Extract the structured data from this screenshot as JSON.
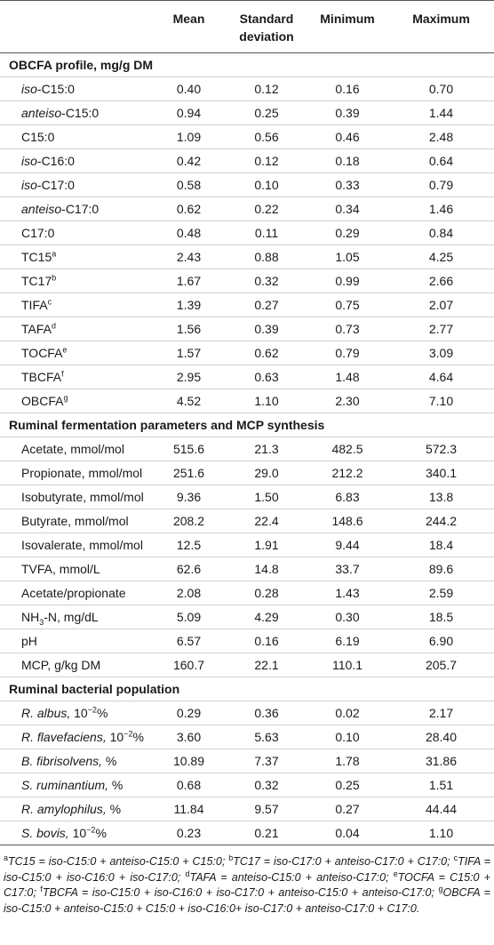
{
  "table": {
    "columns": [
      "Mean",
      "Standard deviation",
      "Minimum",
      "Maximum"
    ],
    "sections": [
      {
        "title": "OBCFA profile, mg/g DM",
        "rows": [
          {
            "label": [
              {
                "text": "iso",
                "style": "italic"
              },
              "-C15:0"
            ],
            "values": [
              "0.40",
              "0.12",
              "0.16",
              "0.70"
            ]
          },
          {
            "label": [
              {
                "text": "anteiso",
                "style": "italic"
              },
              "-C15:0"
            ],
            "values": [
              "0.94",
              "0.25",
              "0.39",
              "1.44"
            ]
          },
          {
            "label": [
              "C15:0"
            ],
            "values": [
              "1.09",
              "0.56",
              "0.46",
              "2.48"
            ]
          },
          {
            "label": [
              {
                "text": "iso",
                "style": "italic"
              },
              "-C16:0"
            ],
            "values": [
              "0.42",
              "0.12",
              "0.18",
              "0.64"
            ]
          },
          {
            "label": [
              {
                "text": "iso",
                "style": "italic"
              },
              "-C17:0"
            ],
            "values": [
              "0.58",
              "0.10",
              "0.33",
              "0.79"
            ]
          },
          {
            "label": [
              {
                "text": "anteiso",
                "style": "italic"
              },
              "-C17:0"
            ],
            "values": [
              "0.62",
              "0.22",
              "0.34",
              "1.46"
            ]
          },
          {
            "label": [
              "C17:0"
            ],
            "values": [
              "0.48",
              "0.11",
              "0.29",
              "0.84"
            ]
          },
          {
            "label": [
              "TC15",
              {
                "text": "a",
                "style": "sup"
              }
            ],
            "values": [
              "2.43",
              "0.88",
              "1.05",
              "4.25"
            ]
          },
          {
            "label": [
              "TC17",
              {
                "text": "b",
                "style": "sup"
              }
            ],
            "values": [
              "1.67",
              "0.32",
              "0.99",
              "2.66"
            ]
          },
          {
            "label": [
              "TIFA",
              {
                "text": "c",
                "style": "sup"
              }
            ],
            "values": [
              "1.39",
              "0.27",
              "0.75",
              "2.07"
            ]
          },
          {
            "label": [
              "TAFA",
              {
                "text": "d",
                "style": "sup"
              }
            ],
            "values": [
              "1.56",
              "0.39",
              "0.73",
              "2.77"
            ]
          },
          {
            "label": [
              "TOCFA",
              {
                "text": "e",
                "style": "sup"
              }
            ],
            "values": [
              "1.57",
              "0.62",
              "0.79",
              "3.09"
            ]
          },
          {
            "label": [
              "TBCFA",
              {
                "text": "f",
                "style": "sup"
              }
            ],
            "values": [
              "2.95",
              "0.63",
              "1.48",
              "4.64"
            ]
          },
          {
            "label": [
              "OBCFA",
              {
                "text": "g",
                "style": "sup"
              }
            ],
            "values": [
              "4.52",
              "1.10",
              "2.30",
              "7.10"
            ]
          }
        ]
      },
      {
        "title": "Ruminal fermentation parameters and MCP synthesis",
        "rows": [
          {
            "label": [
              "Acetate, mmol/mol"
            ],
            "values": [
              "515.6",
              "21.3",
              "482.5",
              "572.3"
            ]
          },
          {
            "label": [
              "Propionate, mmol/mol"
            ],
            "values": [
              "251.6",
              "29.0",
              "212.2",
              "340.1"
            ]
          },
          {
            "label": [
              "Isobutyrate, mmol/mol"
            ],
            "values": [
              "9.36",
              "1.50",
              "6.83",
              "13.8"
            ]
          },
          {
            "label": [
              "Butyrate, mmol/mol"
            ],
            "values": [
              "208.2",
              "22.4",
              "148.6",
              "244.2"
            ]
          },
          {
            "label": [
              "Isovalerate, mmol/mol"
            ],
            "values": [
              "12.5",
              "1.91",
              "9.44",
              "18.4"
            ]
          },
          {
            "label": [
              "TVFA, mmol/L"
            ],
            "values": [
              "62.6",
              "14.8",
              "33.7",
              "89.6"
            ]
          },
          {
            "label": [
              "Acetate/propionate"
            ],
            "values": [
              "2.08",
              "0.28",
              "1.43",
              "2.59"
            ]
          },
          {
            "label": [
              "NH",
              {
                "text": "3",
                "style": "sub"
              },
              "-N, mg/dL"
            ],
            "values": [
              "5.09",
              "4.29",
              "0.30",
              "18.5"
            ]
          },
          {
            "label": [
              "pH"
            ],
            "values": [
              "6.57",
              "0.16",
              "6.19",
              "6.90"
            ]
          },
          {
            "label": [
              "MCP, g/kg DM"
            ],
            "values": [
              "160.7",
              "22.1",
              "110.1",
              "205.7"
            ]
          }
        ]
      },
      {
        "title": "Ruminal bacterial population",
        "rows": [
          {
            "label": [
              {
                "text": "R. albus,",
                "style": "italic"
              },
              " 10",
              {
                "text": "−2",
                "style": "sup"
              },
              "%"
            ],
            "values": [
              "0.29",
              "0.36",
              "0.02",
              "2.17"
            ]
          },
          {
            "label": [
              {
                "text": "R. flavefaciens,",
                "style": "italic"
              },
              " 10",
              {
                "text": "−2",
                "style": "sup"
              },
              "%"
            ],
            "values": [
              "3.60",
              "5.63",
              "0.10",
              "28.40"
            ]
          },
          {
            "label": [
              {
                "text": "B. fibrisolvens,",
                "style": "italic"
              },
              " %"
            ],
            "values": [
              "10.89",
              "7.37",
              "1.78",
              "31.86"
            ]
          },
          {
            "label": [
              {
                "text": "S. ruminantium,",
                "style": "italic"
              },
              " %"
            ],
            "values": [
              "0.68",
              "0.32",
              "0.25",
              "1.51"
            ]
          },
          {
            "label": [
              {
                "text": "R. amylophilus,",
                "style": "italic"
              },
              " %"
            ],
            "values": [
              "11.84",
              "9.57",
              "0.27",
              "44.44"
            ]
          },
          {
            "label": [
              {
                "text": "S. bovis,",
                "style": "italic"
              },
              " 10",
              {
                "text": "−2",
                "style": "sup"
              },
              "%"
            ],
            "values": [
              "0.23",
              "0.21",
              "0.04",
              "1.10"
            ]
          }
        ]
      }
    ]
  },
  "footnote": [
    {
      "text": "a",
      "style": "sup"
    },
    {
      "text": "TC15 = iso-C15:0 + anteiso-C15:0 + C15:0; ",
      "style": "italic"
    },
    {
      "text": "b",
      "style": "sup"
    },
    {
      "text": "TC17 = iso-C17:0 + anteiso-C17:0 + C17:0; ",
      "style": "italic"
    },
    {
      "text": "c",
      "style": "sup"
    },
    {
      "text": "TIFA = iso-C15:0 + iso-C16:0 + iso-C17:0; ",
      "style": "italic"
    },
    {
      "text": "d",
      "style": "sup"
    },
    {
      "text": "TAFA = anteiso-C15:0 + anteiso-C17:0; ",
      "style": "italic"
    },
    {
      "text": "e",
      "style": "sup"
    },
    {
      "text": "TOCFA = C15:0 + C17:0; ",
      "style": "italic"
    },
    {
      "text": "f",
      "style": "sup"
    },
    {
      "text": "TBCFA = iso-C15:0 + iso-C16:0 + iso-C17:0 + anteiso-C15:0 + anteiso-C17:0; ",
      "style": "italic"
    },
    {
      "text": "g",
      "style": "sup"
    },
    {
      "text": "OBCFA = iso-C15:0 + anteiso-C15:0 + C15:0 + iso-C16:0+ iso-C17:0 + anteiso-C17:0 + C17:0.",
      "style": "italic"
    }
  ]
}
